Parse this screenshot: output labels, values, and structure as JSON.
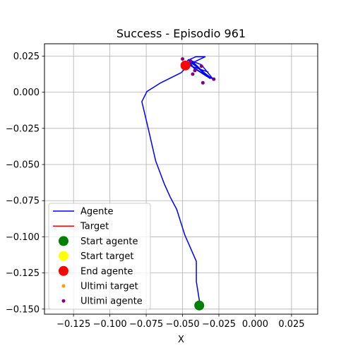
{
  "chart_data": {
    "type": "line",
    "title": "Success - Episodio 961",
    "xlabel": "X",
    "ylabel": "",
    "xlim": [
      -0.145,
      0.043
    ],
    "ylim": [
      -0.1535,
      0.0335
    ],
    "grid": true,
    "legend_position": "lower-left",
    "x_ticks": [
      -0.125,
      -0.1,
      -0.075,
      -0.05,
      -0.025,
      0.0,
      0.025
    ],
    "x_tick_labels": [
      "−0.125",
      "−0.100",
      "−0.075",
      "−0.050",
      "−0.025",
      "0.000",
      "0.025"
    ],
    "y_ticks": [
      0.025,
      0.0,
      -0.025,
      -0.05,
      -0.075,
      -0.1,
      -0.125,
      -0.15
    ],
    "y_tick_labels": [
      "0.025",
      "0.000",
      "−0.025",
      "−0.050",
      "−0.075",
      "−0.100",
      "−0.125",
      "−0.150"
    ],
    "series": [
      {
        "name": "Agente",
        "kind": "line",
        "color": "#0000ff",
        "x": [
          -0.038,
          -0.0385,
          -0.0405,
          -0.0405,
          -0.0485,
          -0.054,
          -0.0585,
          -0.0625,
          -0.0685,
          -0.074,
          -0.078,
          -0.0775,
          -0.0745,
          -0.065,
          -0.051,
          -0.047,
          -0.0465,
          -0.041,
          -0.0345,
          -0.045,
          -0.042,
          -0.031,
          -0.046,
          -0.037,
          -0.0285,
          -0.0455,
          -0.0425,
          -0.0325,
          -0.044,
          -0.0395,
          -0.0325,
          -0.0455
        ],
        "y": [
          -0.1475,
          -0.1435,
          -0.131,
          -0.117,
          -0.0985,
          -0.081,
          -0.0725,
          -0.0635,
          -0.0475,
          -0.0235,
          -0.0065,
          -0.0055,
          0.0005,
          0.0065,
          0.0135,
          0.0175,
          0.022,
          0.0245,
          0.0245,
          0.0195,
          0.0165,
          0.0095,
          0.0225,
          0.019,
          0.0085,
          0.0215,
          0.017,
          0.011,
          0.022,
          0.0165,
          0.014,
          0.0185
        ]
      },
      {
        "name": "Target",
        "kind": "line",
        "color": "#ff0000",
        "x": [],
        "y": []
      },
      {
        "name": "Start agente",
        "kind": "marker",
        "color": "#008000",
        "size": 7,
        "x": [
          -0.0385
        ],
        "y": [
          -0.1475
        ]
      },
      {
        "name": "Start target",
        "kind": "marker",
        "color": "#ffff00",
        "size": 7,
        "x": [],
        "y": []
      },
      {
        "name": "End agente",
        "kind": "marker",
        "color": "#ff0000",
        "size": 7,
        "x": [
          -0.048
        ],
        "y": [
          0.0185
        ]
      },
      {
        "name": "Ultimi target",
        "kind": "marker",
        "color": "#ff9900",
        "size": 2.5,
        "x": [],
        "y": []
      },
      {
        "name": "Ultimi agente",
        "kind": "marker",
        "color": "#800080",
        "size": 2.5,
        "x": [
          -0.0285,
          -0.036,
          -0.0445,
          -0.05,
          -0.043,
          -0.037,
          -0.0415
        ],
        "y": [
          0.009,
          0.0065,
          0.0215,
          0.023,
          0.0125,
          0.018,
          0.015
        ]
      }
    ]
  }
}
